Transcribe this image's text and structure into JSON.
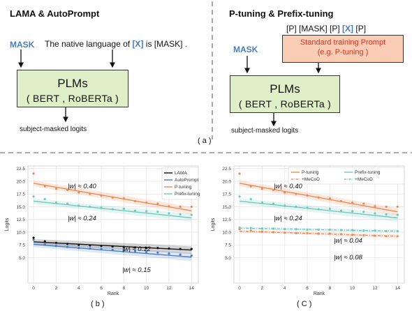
{
  "top_left": {
    "heading": "LAMA & AutoPrompt",
    "mask": "MASK",
    "sentence_before": "The native language of",
    "x_token": "[X]",
    "sentence_after": "is [MASK] .",
    "box_title": "PLMs",
    "box_sub": "( BERT , RoBERTa )",
    "output": "subject-masked logits"
  },
  "top_right": {
    "heading": "P-tuning & Prefix-tuning",
    "template_before": "[P] [MASK] [P]",
    "x_token": "[X]",
    "template_after": "[P]",
    "prompt_line1": "Standard training Prompt",
    "prompt_line2": "(e.g. P-tuning )",
    "mask": "MASK",
    "box_title": "PLMs",
    "box_sub": "( BERT , RoBERTa )",
    "output": "subject-masked logits"
  },
  "caption_a": "( a )",
  "caption_b": "( b )",
  "caption_c": "( C )",
  "colors": {
    "black": "#111111",
    "blue": "#4a7cc0",
    "orange": "#ef8a55",
    "teal": "#6fcabb"
  },
  "chart_data": [
    {
      "type": "scatter",
      "xlabel": "Rank",
      "ylabel": "Logits",
      "xlim": [
        -0.5,
        14.6
      ],
      "ylim": [
        0,
        23
      ],
      "xticks": [
        0,
        2,
        4,
        6,
        8,
        10,
        12,
        14
      ],
      "yticks": [
        5.0,
        7.5,
        10.0,
        12.5,
        15.0,
        17.5,
        20.0,
        22.5
      ],
      "grid": true,
      "legend": "top-right",
      "series": [
        {
          "name": "LAMA",
          "color": "#111111",
          "x": [
            0,
            1,
            2,
            3,
            4,
            5,
            6,
            7,
            8,
            9,
            10,
            11,
            12,
            13,
            14
          ],
          "y": [
            8.9,
            8.2,
            7.9,
            7.7,
            7.5,
            7.4,
            7.3,
            7.2,
            7.1,
            7.0,
            6.9,
            6.9,
            6.8,
            6.7,
            6.7
          ],
          "fit": [
            8.1,
            6.5
          ]
        },
        {
          "name": "AutoPrompt",
          "color": "#4a7cc0",
          "x": [
            0,
            1,
            2,
            3,
            4,
            5,
            6,
            7,
            8,
            9,
            10,
            11,
            12,
            13,
            14
          ],
          "y": [
            8.5,
            7.6,
            7.3,
            7.1,
            6.9,
            6.8,
            6.7,
            6.5,
            6.4,
            6.3,
            6.1,
            6.0,
            5.8,
            5.6,
            5.4
          ],
          "fit": [
            7.6,
            5.1
          ]
        },
        {
          "name": "P-tuning",
          "color": "#ef8a55",
          "x": [
            0,
            1,
            2,
            3,
            4,
            5,
            6,
            7,
            8,
            9,
            10,
            11,
            12,
            13,
            14
          ],
          "y": [
            21.5,
            19.0,
            18.5,
            18.3,
            17.8,
            17.5,
            17.2,
            16.8,
            16.6,
            16.1,
            15.8,
            15.6,
            15.1,
            15.0,
            15.0
          ],
          "fit": [
            19.6,
            14.2
          ]
        },
        {
          "name": "Prefix-tuning",
          "color": "#6fcabb",
          "x": [
            0,
            1,
            2,
            3,
            4,
            5,
            6,
            7,
            8,
            9,
            10,
            11,
            12,
            13,
            14
          ],
          "y": [
            17.0,
            16.5,
            15.8,
            15.6,
            15.2,
            15.0,
            14.8,
            14.5,
            14.6,
            14.2,
            14.1,
            14.0,
            13.7,
            13.5,
            13.4
          ],
          "fit": [
            16.1,
            12.8
          ]
        }
      ],
      "annotations": [
        "|w| ≈ 0.40",
        "|w| ≈ 0.24",
        "|w| ≈ 0.12",
        "|w| ≈ 0.15"
      ]
    },
    {
      "type": "scatter",
      "xlabel": "Rank",
      "ylabel": "Logits",
      "xlim": [
        -0.5,
        14.6
      ],
      "ylim": [
        0,
        23
      ],
      "xticks": [
        0,
        2,
        4,
        6,
        8,
        10,
        12,
        14
      ],
      "yticks": [
        5.0,
        7.5,
        10.0,
        12.5,
        15.0,
        17.5,
        20.0,
        22.5
      ],
      "grid": true,
      "legend": "top-right",
      "series": [
        {
          "name": "P-tuning",
          "color": "#ef8a55",
          "x": [
            0,
            1,
            2,
            3,
            4,
            5,
            6,
            7,
            8,
            9,
            10,
            11,
            12,
            13,
            14
          ],
          "y": [
            21.5,
            19.0,
            18.5,
            18.3,
            17.8,
            17.5,
            17.2,
            16.8,
            16.6,
            16.1,
            15.8,
            15.6,
            15.1,
            15.0,
            15.0
          ],
          "fit": [
            19.6,
            14.0
          ]
        },
        {
          "name": "+MeCoD",
          "color": "#ef8a55",
          "dashed": true,
          "x": [
            0,
            1,
            2,
            3,
            4,
            5,
            6,
            7,
            8,
            9,
            10,
            11,
            12,
            13,
            14
          ],
          "y": [
            10.6,
            10.3,
            10.1,
            10.0,
            9.9,
            9.8,
            9.8,
            9.7,
            9.7,
            9.6,
            9.5,
            9.4,
            9.3,
            9.2,
            9.2
          ],
          "fit": [
            10.2,
            9.2
          ]
        },
        {
          "name": "Prefix-tuning",
          "color": "#6fcabb",
          "x": [
            0,
            1,
            2,
            3,
            4,
            5,
            6,
            7,
            8,
            9,
            10,
            11,
            12,
            13,
            14
          ],
          "y": [
            17.0,
            16.5,
            15.8,
            15.6,
            15.2,
            15.0,
            14.8,
            14.5,
            14.6,
            14.2,
            14.1,
            14.0,
            13.7,
            13.5,
            13.4
          ],
          "fit": [
            16.1,
            12.8
          ]
        },
        {
          "name": "+MeCoD",
          "color": "#6fcabb",
          "dashed": true,
          "x": [
            0,
            1,
            2,
            3,
            4,
            5,
            6,
            7,
            8,
            9,
            10,
            11,
            12,
            13,
            14
          ],
          "y": [
            10.9,
            10.8,
            10.7,
            10.7,
            10.6,
            10.6,
            10.5,
            10.5,
            10.5,
            10.4,
            10.4,
            10.3,
            10.3,
            10.2,
            10.2
          ],
          "fit": [
            10.8,
            10.2
          ]
        }
      ],
      "annotations": [
        "|w| ≈ 0.40",
        "|w| ≈ 0.24",
        "|w| ≈ 0.04",
        "|w| ≈ 0.08"
      ]
    }
  ]
}
